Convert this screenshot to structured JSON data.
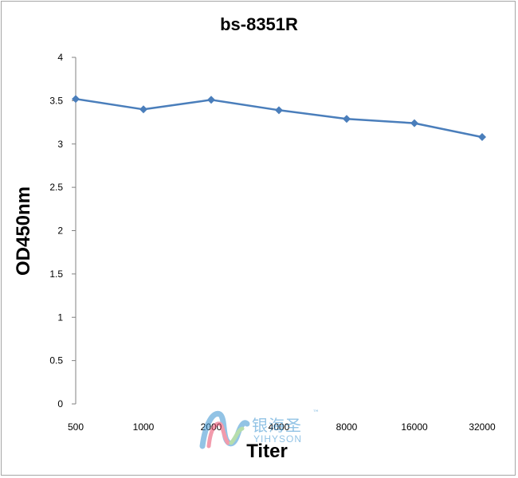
{
  "chart_data": {
    "type": "line",
    "title": "bs-8351R",
    "xlabel": "Titer",
    "ylabel": "OD450nm",
    "categories": [
      "500",
      "1000",
      "2000",
      "4000",
      "8000",
      "16000",
      "32000"
    ],
    "series": [
      {
        "values": [
          3.52,
          3.4,
          3.51,
          3.39,
          3.29,
          3.24,
          3.08
        ],
        "color": "#4a7ebb",
        "marker": "diamond"
      }
    ],
    "ylim": [
      0,
      4
    ],
    "yticks": [
      "0",
      "0.5",
      "1",
      "1.5",
      "2",
      "2.5",
      "3",
      "3.5",
      "4"
    ],
    "grid": false,
    "legend": "none"
  },
  "watermark": {
    "chinese_text": "银海圣",
    "trademark": "™",
    "english_text": "YIHYSON"
  }
}
